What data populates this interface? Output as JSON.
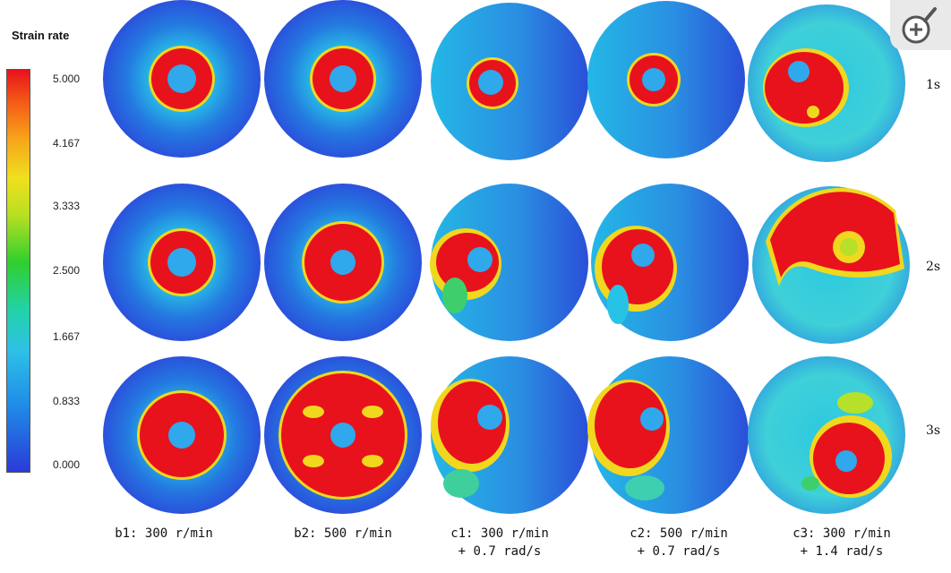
{
  "legend": {
    "title": "Strain rate",
    "ticks": [
      "5.000",
      "4.167",
      "3.333",
      "2.500",
      "1.667",
      "0.833",
      "0.000"
    ]
  },
  "times": [
    "1s",
    "2s",
    "3s"
  ],
  "captions": [
    {
      "line1": "b1: 300 r/min",
      "line2": ""
    },
    {
      "line1": "b2: 500 r/min",
      "line2": ""
    },
    {
      "line1": "c1: 300 r/min",
      "line2": "+ 0.7 rad/s"
    },
    {
      "line1": "c2: 500 r/min",
      "line2": "+ 0.7 rad/s"
    },
    {
      "line1": "c3: 300 r/min",
      "line2": "+ 1.4 rad/s"
    }
  ],
  "colors": {
    "low": "#2a3bd8",
    "mid": "#22d2aa",
    "high": "#e8121c",
    "yellow": "#efe01e"
  },
  "zoom_icon": "zoom-in-icon"
}
